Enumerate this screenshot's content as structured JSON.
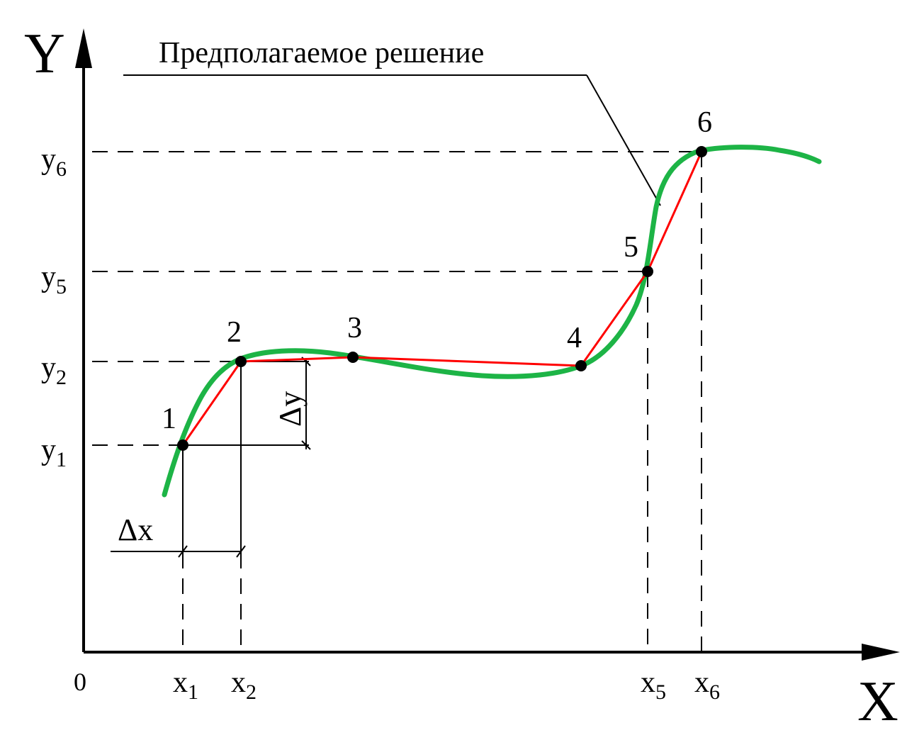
{
  "axes": {
    "y_label": "Y",
    "x_label": "X",
    "origin_label": "0"
  },
  "annotation": {
    "text": "Предполагаемое решение"
  },
  "colors": {
    "solution_curve": "#1db446",
    "approximation": "#ff0000",
    "ink": "#000000"
  },
  "points": [
    {
      "label": "1"
    },
    {
      "label": "2"
    },
    {
      "label": "3"
    },
    {
      "label": "4"
    },
    {
      "label": "5"
    },
    {
      "label": "6"
    }
  ],
  "y_ticks": [
    {
      "base": "y",
      "sub": "6"
    },
    {
      "base": "y",
      "sub": "5"
    },
    {
      "base": "y",
      "sub": "2"
    },
    {
      "base": "y",
      "sub": "1"
    }
  ],
  "x_ticks": [
    {
      "base": "x",
      "sub": "1"
    },
    {
      "base": "x",
      "sub": "2"
    },
    {
      "base": "x",
      "sub": "5"
    },
    {
      "base": "x",
      "sub": "6"
    }
  ],
  "delta_x": "Δx",
  "delta_y": "Δy"
}
